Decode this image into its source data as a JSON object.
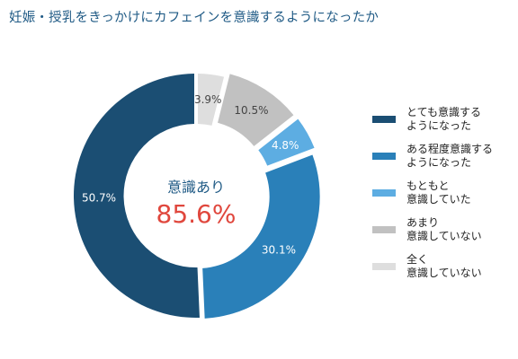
{
  "chart_data": {
    "type": "pie",
    "title": "妊娠・授乳をきっかけにカフェインを意識するようになったか",
    "center_caption": "意識あり",
    "center_value": "85.6%",
    "slices": [
      {
        "label": "とても意識する\nようになった",
        "value": 50.7,
        "value_label": "50.7%",
        "color": "#1b4e73"
      },
      {
        "label": "ある程度意識する\nようになった",
        "value": 30.1,
        "value_label": "30.1%",
        "color": "#2a80b9"
      },
      {
        "label": "もともと\n意識していた",
        "value": 4.8,
        "value_label": "4.8%",
        "color": "#5dade2"
      },
      {
        "label": "あまり\n意識していない",
        "value": 10.5,
        "value_label": "10.5%",
        "color": "#c1c1c1"
      },
      {
        "label": "全く\n意識していない",
        "value": 3.9,
        "value_label": "3.9%",
        "color": "#dedede"
      }
    ],
    "legend_position": "right",
    "colors": {
      "title": "#1f5a85",
      "center_caption": "#1f5a85",
      "center_value": "#e0473d"
    }
  }
}
